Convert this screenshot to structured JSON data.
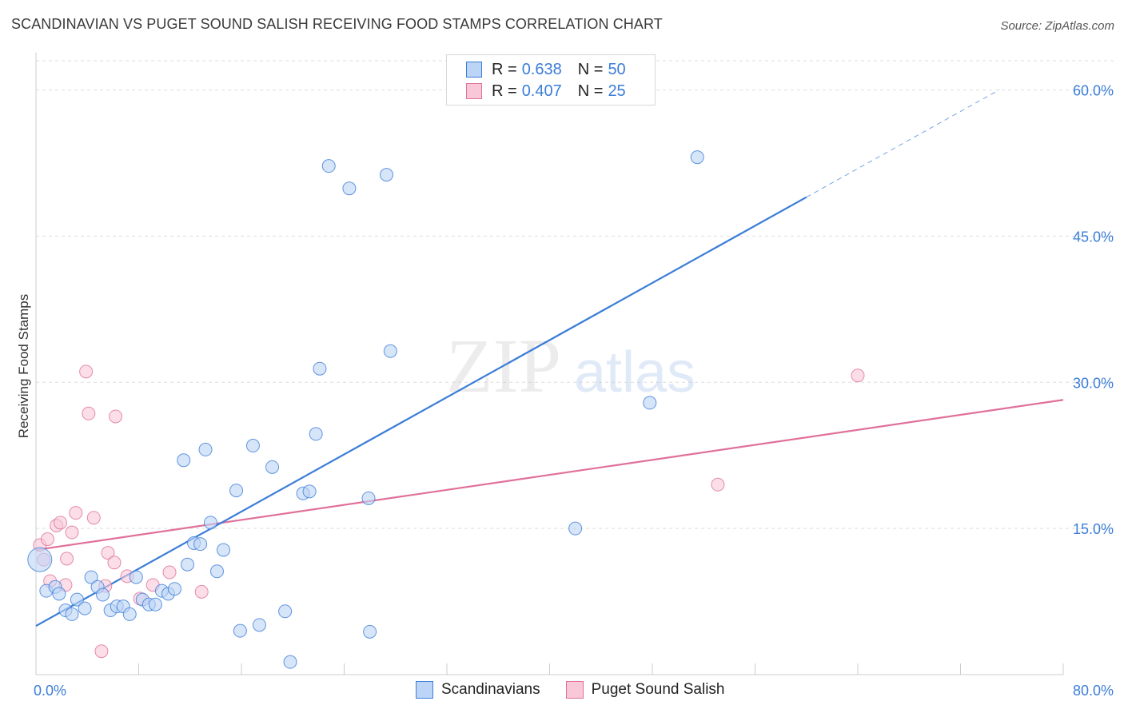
{
  "title": "SCANDINAVIAN VS PUGET SOUND SALISH RECEIVING FOOD STAMPS CORRELATION CHART",
  "source": "Source: ZipAtlas.com",
  "watermark": {
    "zip": "ZIP",
    "atlas": "atlas"
  },
  "colors": {
    "blue": "#3b7dd8",
    "blue_fill": "#bcd4f5",
    "pink": "#e0709a",
    "pink_fill": "#f8c8d8",
    "grid": "#dddddd",
    "tick_text": "#3b7dd8"
  },
  "legend_top": {
    "rows": [
      {
        "r_label": "R =",
        "r_value": "0.638",
        "n_label": "N =",
        "n_value": "50"
      },
      {
        "r_label": "R =",
        "r_value": "0.407",
        "n_label": "N =",
        "n_value": "25"
      }
    ]
  },
  "legend_bottom": [
    "Scandinavians",
    "Puget Sound Salish"
  ],
  "chart_data": {
    "type": "scatter",
    "title": "SCANDINAVIAN VS PUGET SOUND SALISH RECEIVING FOOD STAMPS CORRELATION CHART",
    "xlabel": "",
    "ylabel": "Receiving Food Stamps",
    "xlim": [
      0,
      80
    ],
    "ylim": [
      0,
      63
    ],
    "x_tick_labels": [
      "0.0%",
      "80.0%"
    ],
    "y_ticks": [
      15,
      30,
      45,
      60
    ],
    "y_tick_labels": [
      "15.0%",
      "30.0%",
      "45.0%",
      "60.0%"
    ],
    "grid": true,
    "series": [
      {
        "name": "Scandinavians",
        "r": 0.638,
        "n": 50,
        "trend": {
          "x0": 0,
          "y0": 5.0,
          "x1": 60,
          "y1": 49.0,
          "dashed_to_x": 75,
          "dashed_to_y": 60.0
        },
        "points": [
          [
            0.3,
            11.8
          ],
          [
            0.8,
            8.6
          ],
          [
            1.5,
            9.0
          ],
          [
            1.8,
            8.3
          ],
          [
            2.3,
            6.6
          ],
          [
            2.8,
            6.2
          ],
          [
            3.2,
            7.7
          ],
          [
            3.8,
            6.8
          ],
          [
            4.3,
            10.0
          ],
          [
            4.8,
            9.0
          ],
          [
            5.2,
            8.2
          ],
          [
            5.8,
            6.6
          ],
          [
            6.3,
            7.0
          ],
          [
            6.8,
            7.0
          ],
          [
            7.3,
            6.2
          ],
          [
            7.8,
            10.0
          ],
          [
            8.3,
            7.7
          ],
          [
            8.8,
            7.2
          ],
          [
            9.3,
            7.2
          ],
          [
            9.8,
            8.6
          ],
          [
            10.3,
            8.3
          ],
          [
            10.8,
            8.8
          ],
          [
            11.5,
            22.0
          ],
          [
            11.8,
            11.3
          ],
          [
            12.3,
            13.5
          ],
          [
            12.8,
            13.4
          ],
          [
            13.2,
            23.1
          ],
          [
            13.6,
            15.6
          ],
          [
            14.1,
            10.6
          ],
          [
            14.6,
            12.8
          ],
          [
            15.6,
            18.9
          ],
          [
            15.9,
            4.5
          ],
          [
            16.9,
            23.5
          ],
          [
            17.4,
            5.1
          ],
          [
            18.4,
            21.3
          ],
          [
            19.4,
            6.5
          ],
          [
            19.8,
            1.3
          ],
          [
            20.8,
            18.6
          ],
          [
            21.3,
            18.8
          ],
          [
            21.8,
            24.7
          ],
          [
            22.1,
            31.4
          ],
          [
            22.8,
            52.2
          ],
          [
            24.4,
            49.9
          ],
          [
            25.9,
            18.1
          ],
          [
            26.0,
            4.4
          ],
          [
            27.3,
            51.3
          ],
          [
            27.6,
            33.2
          ],
          [
            42.0,
            15.0
          ],
          [
            47.8,
            27.9
          ],
          [
            51.5,
            53.1
          ]
        ]
      },
      {
        "name": "Puget Sound Salish",
        "r": 0.407,
        "n": 25,
        "trend": {
          "x0": 0,
          "y0": 12.8,
          "x1": 80,
          "y1": 28.2
        },
        "points": [
          [
            0.3,
            13.3
          ],
          [
            0.6,
            11.8
          ],
          [
            0.9,
            13.9
          ],
          [
            1.1,
            9.6
          ],
          [
            1.6,
            15.3
          ],
          [
            1.9,
            15.6
          ],
          [
            2.3,
            9.2
          ],
          [
            2.4,
            11.9
          ],
          [
            2.8,
            14.6
          ],
          [
            3.1,
            16.6
          ],
          [
            3.9,
            31.1
          ],
          [
            4.1,
            26.8
          ],
          [
            4.5,
            16.1
          ],
          [
            5.1,
            2.4
          ],
          [
            5.4,
            9.1
          ],
          [
            5.6,
            12.5
          ],
          [
            6.1,
            11.5
          ],
          [
            6.2,
            26.5
          ],
          [
            7.1,
            10.1
          ],
          [
            8.1,
            7.8
          ],
          [
            9.1,
            9.2
          ],
          [
            10.4,
            10.5
          ],
          [
            12.9,
            8.5
          ],
          [
            53.1,
            19.5
          ],
          [
            64.0,
            30.7
          ]
        ]
      }
    ]
  }
}
